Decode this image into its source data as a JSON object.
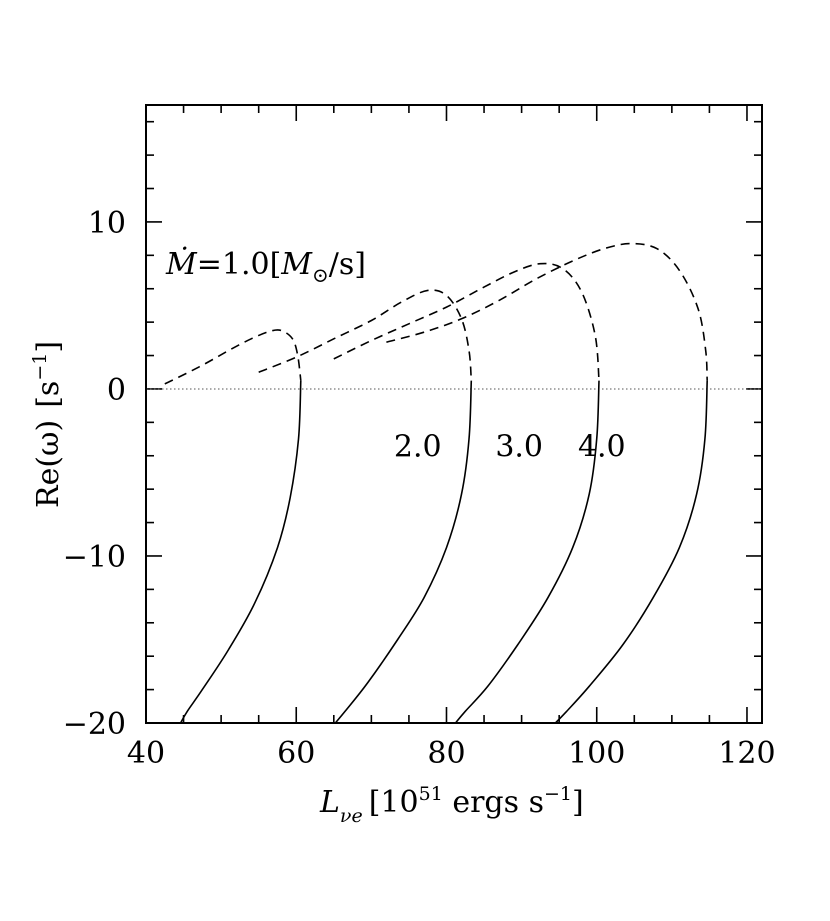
{
  "chart_data": {
    "type": "line",
    "xlabel": "L",
    "xlabel_subscript": "νe",
    "xlabel_units_prefix": "[10",
    "xlabel_units_exp": "51",
    "xlabel_units_mid": " ergs s",
    "xlabel_units_exp2": "−1",
    "xlabel_units_suffix": "]",
    "ylabel": "Re(ω)",
    "ylabel_units_prefix": "[s",
    "ylabel_units_exp": "−1",
    "ylabel_units_suffix": "]",
    "xlim": [
      40,
      122
    ],
    "ylim": [
      -20,
      17
    ],
    "x_major_ticks": [
      40,
      60,
      80,
      100,
      120
    ],
    "x_tick_labels": [
      "40",
      "60",
      "80",
      "100",
      "120"
    ],
    "y_major_ticks": [
      -20,
      -10,
      0,
      10
    ],
    "y_tick_labels": [
      "−20",
      "−10",
      "0",
      "10"
    ],
    "zero_line": true,
    "grid": false,
    "first_label_prefix": "Ṁ",
    "first_label_eq": "=1.0[",
    "first_label_unit": "M",
    "first_label_sub": "⊙",
    "first_label_suffix": "/s]",
    "series": [
      {
        "label": "1.0",
        "dashed": [
          [
            42.5,
            0.3
          ],
          [
            47.0,
            1.3
          ],
          [
            51.0,
            2.3
          ],
          [
            54.0,
            3.0
          ],
          [
            56.5,
            3.45
          ],
          [
            58.0,
            3.5
          ],
          [
            59.5,
            3.0
          ],
          [
            60.2,
            2.0
          ],
          [
            60.6,
            0.5
          ]
        ],
        "solid": [
          [
            60.6,
            0.5
          ],
          [
            60.3,
            -3.0
          ],
          [
            59.2,
            -6.5
          ],
          [
            57.5,
            -9.5
          ],
          [
            54.5,
            -12.8
          ],
          [
            51.0,
            -15.6
          ],
          [
            47.5,
            -18.0
          ],
          [
            45.5,
            -19.3
          ],
          [
            44.6,
            -20.0
          ]
        ]
      },
      {
        "label": "2.0",
        "dashed": [
          [
            55.0,
            1.0
          ],
          [
            60.0,
            1.9
          ],
          [
            65.0,
            3.0
          ],
          [
            70.0,
            4.1
          ],
          [
            74.0,
            5.2
          ],
          [
            77.5,
            5.9
          ],
          [
            80.0,
            5.6
          ],
          [
            82.0,
            4.2
          ],
          [
            83.0,
            2.3
          ],
          [
            83.3,
            0.5
          ]
        ],
        "solid": [
          [
            83.3,
            0.5
          ],
          [
            83.0,
            -3.0
          ],
          [
            82.0,
            -6.3
          ],
          [
            80.0,
            -9.5
          ],
          [
            77.0,
            -12.5
          ],
          [
            73.5,
            -15.0
          ],
          [
            69.5,
            -17.6
          ],
          [
            66.5,
            -19.3
          ],
          [
            65.2,
            -20.0
          ]
        ]
      },
      {
        "label": "3.0",
        "dashed": [
          [
            65.0,
            1.8
          ],
          [
            70.0,
            2.9
          ],
          [
            75.0,
            3.9
          ],
          [
            80.0,
            4.9
          ],
          [
            85.0,
            6.1
          ],
          [
            89.0,
            7.0
          ],
          [
            92.5,
            7.5
          ],
          [
            95.5,
            7.2
          ],
          [
            98.0,
            5.8
          ],
          [
            99.8,
            3.2
          ],
          [
            100.3,
            0.5
          ]
        ],
        "solid": [
          [
            100.3,
            0.5
          ],
          [
            100.0,
            -3.0
          ],
          [
            99.0,
            -6.3
          ],
          [
            96.8,
            -9.5
          ],
          [
            93.5,
            -12.5
          ],
          [
            89.5,
            -15.3
          ],
          [
            85.5,
            -17.8
          ],
          [
            82.5,
            -19.3
          ],
          [
            81.2,
            -20.0
          ]
        ]
      },
      {
        "label": "4.0",
        "dashed": [
          [
            72.0,
            2.8
          ],
          [
            77.0,
            3.4
          ],
          [
            82.0,
            4.2
          ],
          [
            87.0,
            5.3
          ],
          [
            92.0,
            6.6
          ],
          [
            97.0,
            7.7
          ],
          [
            101.0,
            8.4
          ],
          [
            104.5,
            8.7
          ],
          [
            108.0,
            8.4
          ],
          [
            111.0,
            7.1
          ],
          [
            113.5,
            4.8
          ],
          [
            114.5,
            2.3
          ],
          [
            114.7,
            0.5
          ]
        ],
        "solid": [
          [
            114.7,
            0.5
          ],
          [
            114.4,
            -3.0
          ],
          [
            113.3,
            -6.3
          ],
          [
            111.0,
            -9.5
          ],
          [
            107.5,
            -12.5
          ],
          [
            103.5,
            -15.3
          ],
          [
            99.0,
            -17.8
          ],
          [
            96.0,
            -19.3
          ],
          [
            94.5,
            -20.0
          ]
        ]
      }
    ],
    "curve_labels": [
      {
        "text": "2.0",
        "x": 73.0,
        "y": -3.4
      },
      {
        "text": "3.0",
        "x": 86.5,
        "y": -3.4
      },
      {
        "text": "4.0",
        "x": 97.5,
        "y": -3.4
      }
    ]
  }
}
